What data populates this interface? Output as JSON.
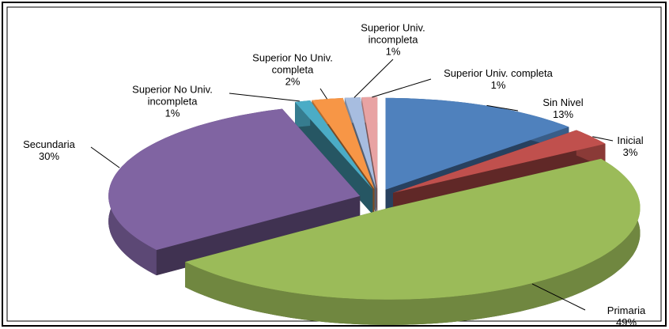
{
  "chart_data": {
    "type": "pie",
    "categories": [
      "Sin Nivel",
      "Inicial",
      "Primaria",
      "Secundaria",
      "Superior No Univ. incompleta",
      "Superior No Univ. completa",
      "Superior Univ. incompleta",
      "Superior Univ. completa"
    ],
    "values": [
      13,
      3,
      49,
      30,
      1,
      2,
      1,
      1
    ],
    "value_labels": [
      "13%",
      "3%",
      "49%",
      "30%",
      "1%",
      "2%",
      "1%",
      "1%"
    ],
    "colors": [
      "#4f81bd",
      "#c0504d",
      "#9bbb59",
      "#8064a2",
      "#4bacc6",
      "#f79646",
      "#a7bde0",
      "#e8a3a3"
    ]
  }
}
